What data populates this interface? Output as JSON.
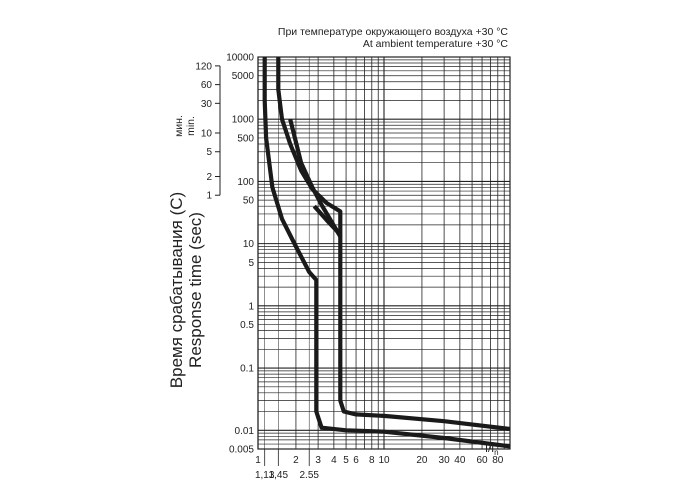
{
  "notes": {
    "ru": "При температуре окружающего воздуха +30 °С",
    "en": "At ambient temperature +30 °С"
  },
  "ylabel": {
    "ru": "Время срабатывания (С)",
    "en": "Response time (sec)"
  },
  "minutes_label": {
    "ru": "мин.",
    "en": "min."
  },
  "xlabel": {
    "main": "I/I",
    "sub": "n"
  },
  "chart_data": {
    "type": "line",
    "x_scale": "log",
    "y_scale": "log",
    "xlim": [
      1,
      100
    ],
    "ylim": [
      0.005,
      10000
    ],
    "grid": true,
    "x_ticks": [
      {
        "value": 1,
        "label": "1"
      },
      {
        "value": 2,
        "label": "2"
      },
      {
        "value": 3,
        "label": "3"
      },
      {
        "value": 4,
        "label": "4"
      },
      {
        "value": 5,
        "label": "5"
      },
      {
        "value": 6,
        "label": "6"
      },
      {
        "value": 8,
        "label": "8"
      },
      {
        "value": 10,
        "label": "10"
      },
      {
        "value": 20,
        "label": "20"
      },
      {
        "value": 30,
        "label": "30"
      },
      {
        "value": 40,
        "label": "40"
      },
      {
        "value": 60,
        "label": "60"
      },
      {
        "value": 80,
        "label": "80"
      }
    ],
    "x_ticks_lower": [
      {
        "value": 1.13,
        "label": "1,13"
      },
      {
        "value": 1.45,
        "label": "1,45"
      },
      {
        "value": 2.55,
        "label": "2.55"
      }
    ],
    "y_ticks_seconds": [
      {
        "value": 10000,
        "label": "10000"
      },
      {
        "value": 5000,
        "label": "5000"
      },
      {
        "value": 1000,
        "label": "1000"
      },
      {
        "value": 500,
        "label": "500"
      },
      {
        "value": 100,
        "label": "100"
      },
      {
        "value": 50,
        "label": "50"
      },
      {
        "value": 10,
        "label": "10"
      },
      {
        "value": 5,
        "label": "5"
      },
      {
        "value": 1,
        "label": "1"
      },
      {
        "value": 0.5,
        "label": "0.5"
      },
      {
        "value": 0.1,
        "label": "0.1"
      },
      {
        "value": 0.01,
        "label": "0.01"
      },
      {
        "value": 0.005,
        "label": "0.005"
      }
    ],
    "y_ticks_minutes": [
      {
        "value": 120,
        "label": "120"
      },
      {
        "value": 60,
        "label": "60"
      },
      {
        "value": 30,
        "label": "30"
      },
      {
        "value": 10,
        "label": "10"
      },
      {
        "value": 5,
        "label": "5"
      },
      {
        "value": 2,
        "label": "2"
      },
      {
        "value": 1,
        "label": "1"
      }
    ],
    "series": [
      {
        "points": [
          [
            1.13,
            10000
          ],
          [
            1.13,
            2000
          ],
          [
            1.16,
            500
          ],
          [
            1.3,
            80
          ],
          [
            1.55,
            25
          ],
          [
            2.0,
            9
          ],
          [
            2.55,
            3.5
          ],
          [
            2.9,
            2.6
          ],
          [
            2.9,
            0.35
          ],
          [
            2.9,
            0.02
          ],
          [
            3.2,
            0.011
          ],
          [
            5,
            0.01
          ],
          [
            10,
            0.0095
          ],
          [
            30,
            0.0075
          ],
          [
            100,
            0.0055
          ]
        ]
      },
      {
        "points": [
          [
            1.45,
            10000
          ],
          [
            1.45,
            3000
          ],
          [
            1.55,
            1000
          ],
          [
            1.8,
            400
          ],
          [
            2.2,
            150
          ],
          [
            2.7,
            75
          ],
          [
            3.5,
            45
          ],
          [
            4.5,
            33
          ],
          [
            4.5,
            10
          ],
          [
            4.5,
            1
          ],
          [
            4.5,
            0.1
          ],
          [
            4.5,
            0.03
          ],
          [
            4.8,
            0.02
          ],
          [
            6,
            0.018
          ],
          [
            10,
            0.017
          ],
          [
            30,
            0.014
          ],
          [
            100,
            0.0105
          ]
        ]
      },
      {
        "points": [
          [
            1.8,
            1000
          ],
          [
            2.2,
            200
          ],
          [
            2.7,
            80
          ],
          [
            3.2,
            42
          ],
          [
            4.5,
            13
          ]
        ]
      },
      {
        "points": [
          [
            2.8,
            40
          ],
          [
            3.5,
            24
          ],
          [
            4.5,
            14
          ]
        ]
      }
    ]
  }
}
